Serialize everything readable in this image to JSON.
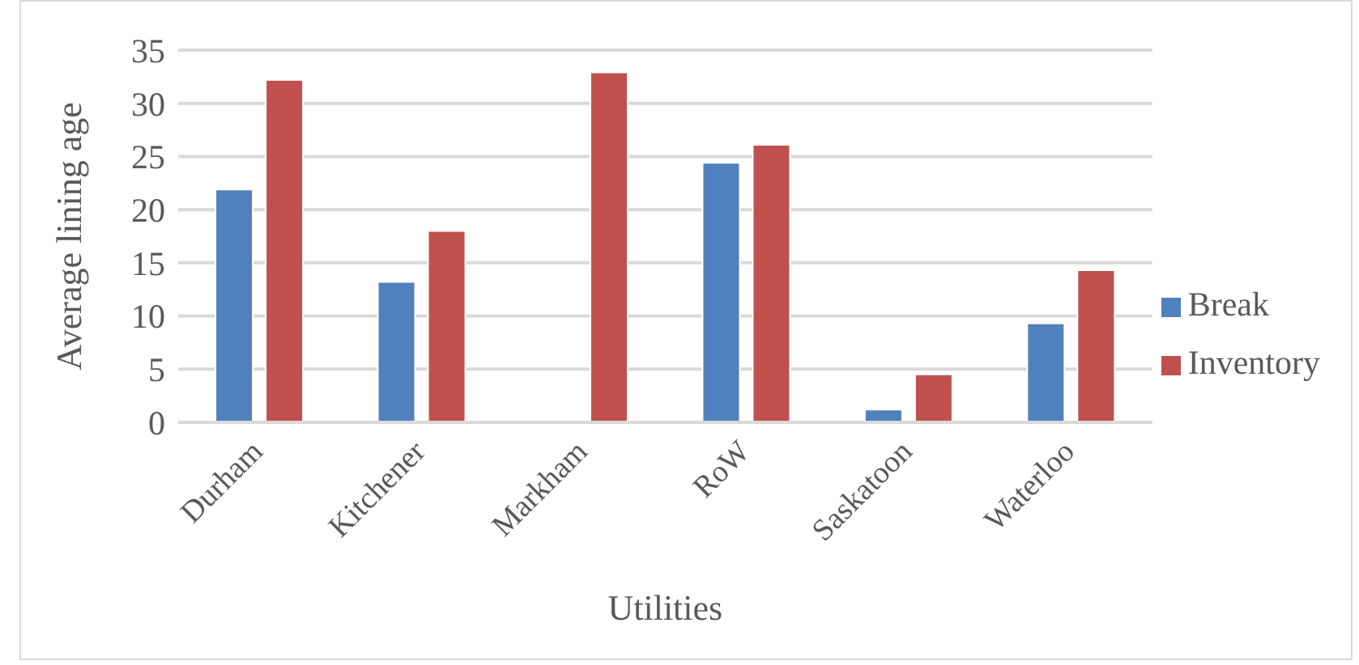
{
  "chart_data": {
    "type": "bar",
    "xlabel": "Utilities",
    "ylabel": "Average lining age",
    "categories": [
      "Durham",
      "Kitchener",
      "Markham",
      "RoW",
      "Saskatoon",
      "Waterloo"
    ],
    "series": [
      {
        "name": "Break",
        "color": "#4f81bd",
        "values": [
          21.9,
          13.2,
          0,
          24.4,
          1.2,
          9.3
        ]
      },
      {
        "name": "Inventory",
        "color": "#c0504d",
        "values": [
          32.2,
          18.0,
          32.9,
          26.1,
          4.5,
          14.3
        ]
      }
    ],
    "ylim": [
      0,
      35
    ],
    "yticks": [
      0,
      5,
      10,
      15,
      20,
      25,
      30,
      35
    ],
    "grid": "y",
    "legend": "right"
  }
}
